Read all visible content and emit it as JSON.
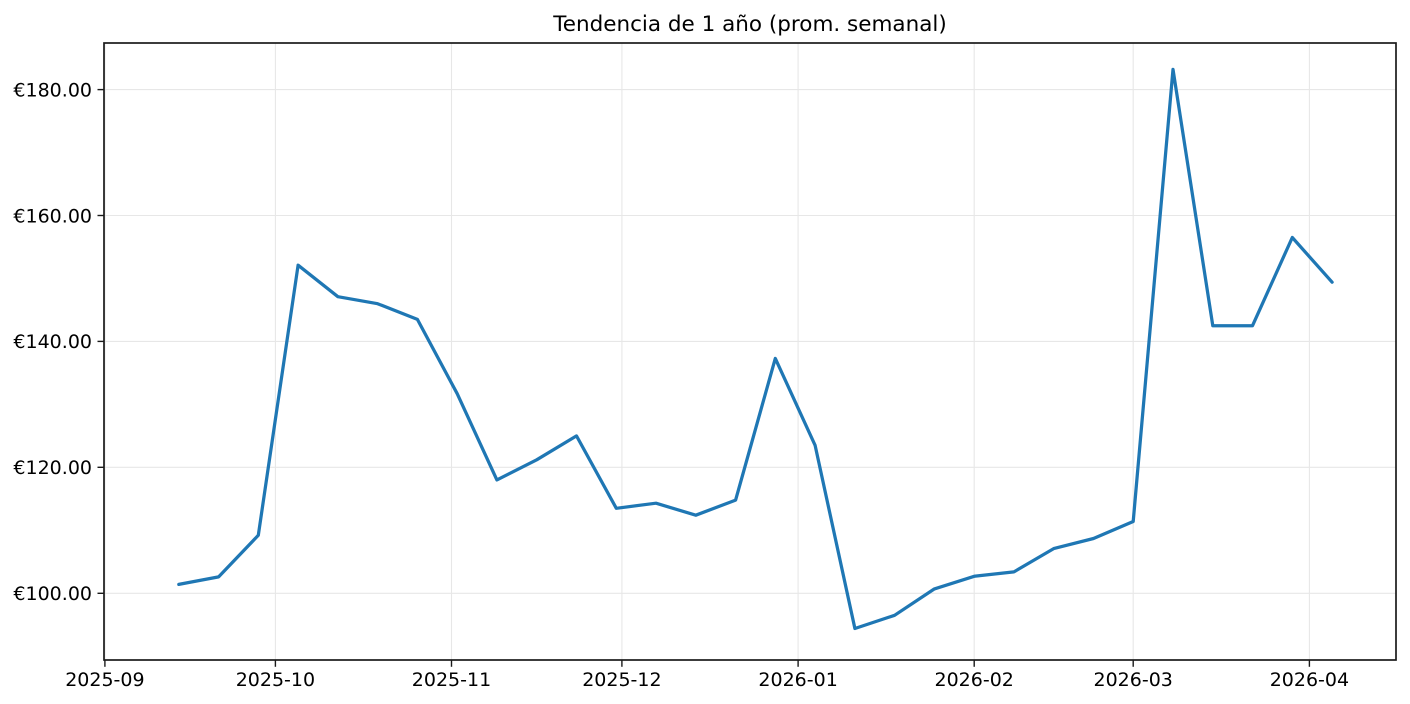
{
  "page": {
    "background": "#ffffff"
  },
  "chart_data": {
    "type": "line",
    "title": "Tendencia de 1 año (prom. semanal)",
    "xlabel": "",
    "ylabel": "",
    "grid": true,
    "legend_position": "none",
    "line_color": "#1f77b4",
    "grid_color": "#e7e7e7",
    "currency_prefix": "€",
    "ylim": [
      89.4,
      187.4
    ],
    "xlim": [
      "2025-08-31T20:00:00Z",
      "2026-04-16T06:00:00Z"
    ],
    "y_ticks": [
      {
        "value": 100,
        "label": "€100.00"
      },
      {
        "value": 120,
        "label": "€120.00"
      },
      {
        "value": 140,
        "label": "€140.00"
      },
      {
        "value": 160,
        "label": "€160.00"
      },
      {
        "value": 180,
        "label": "€180.00"
      }
    ],
    "x_ticks": [
      {
        "date": "2025-09-01",
        "label": "2025-09"
      },
      {
        "date": "2025-10-01",
        "label": "2025-10"
      },
      {
        "date": "2025-11-01",
        "label": "2025-11"
      },
      {
        "date": "2025-12-01",
        "label": "2025-12"
      },
      {
        "date": "2026-01-01",
        "label": "2026-01"
      },
      {
        "date": "2026-02-01",
        "label": "2026-02"
      },
      {
        "date": "2026-03-01",
        "label": "2026-03"
      },
      {
        "date": "2026-04-01",
        "label": "2026-04"
      }
    ],
    "dates": [
      "2025-09-14",
      "2025-09-21",
      "2025-09-28",
      "2025-10-05",
      "2025-10-12",
      "2025-10-19",
      "2025-10-26",
      "2025-11-02",
      "2025-11-09",
      "2025-11-16",
      "2025-11-23",
      "2025-11-30",
      "2025-12-07",
      "2025-12-14",
      "2025-12-21",
      "2025-12-28",
      "2026-01-04",
      "2026-01-11",
      "2026-01-18",
      "2026-01-25",
      "2026-02-01",
      "2026-02-08",
      "2026-02-15",
      "2026-02-22",
      "2026-03-01",
      "2026-03-08",
      "2026-03-15",
      "2026-03-22",
      "2026-03-29",
      "2026-04-05"
    ],
    "values": [
      101.4,
      102.6,
      109.2,
      152.1,
      147.1,
      146.0,
      143.5,
      131.7,
      118.0,
      121.2,
      125.0,
      113.5,
      114.3,
      112.4,
      114.8,
      137.3,
      123.5,
      94.4,
      96.5,
      100.7,
      102.7,
      103.4,
      107.1,
      108.7,
      111.4,
      183.2,
      142.5,
      142.5,
      156.5,
      149.4
    ]
  }
}
